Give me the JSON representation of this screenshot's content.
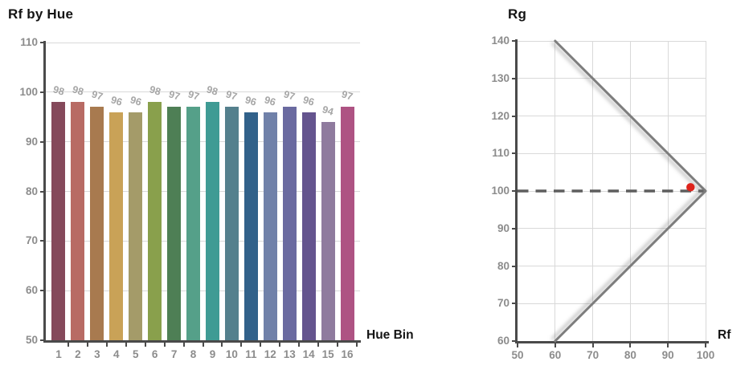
{
  "page": {
    "background": "#ffffff"
  },
  "colors": {
    "title_text": "#141414",
    "axis_line": "#4A4A4A",
    "tick_label": "#8C8C8C",
    "bar_value_label": "#A6A6A6",
    "gridline": "#D9D9D9",
    "boundary_line": "#7D7D7D",
    "dashed_line": "#5E5E5E",
    "point_red": "#DE231B"
  },
  "chart_data": [
    {
      "type": "bar",
      "title": "Rf by Hue",
      "xlabel": "Hue Bin",
      "ylabel": "",
      "ylim": [
        50,
        110
      ],
      "yticks": [
        50,
        60,
        70,
        80,
        90,
        100,
        110
      ],
      "grid": true,
      "categories": [
        "1",
        "2",
        "3",
        "4",
        "5",
        "6",
        "7",
        "8",
        "9",
        "10",
        "11",
        "12",
        "13",
        "14",
        "15",
        "16"
      ],
      "values": [
        98,
        98,
        97,
        96,
        96,
        98,
        97,
        97,
        98,
        97,
        96,
        96,
        97,
        96,
        94,
        97
      ],
      "bar_colors": [
        "#85495B",
        "#B86B64",
        "#A87A4F",
        "#C9A257",
        "#A49B69",
        "#89A04C",
        "#4E7F55",
        "#55A089",
        "#3F9B94",
        "#54808D",
        "#31618A",
        "#7081A9",
        "#6A6AA0",
        "#64548E",
        "#8F7B9E",
        "#AE5383"
      ]
    },
    {
      "type": "scatter",
      "title": "",
      "xlabel": "Rf",
      "ylabel": "Rg",
      "xlim": [
        50,
        100
      ],
      "ylim": [
        60,
        140
      ],
      "xticks": [
        50,
        60,
        70,
        80,
        90,
        100
      ],
      "yticks": [
        60,
        70,
        80,
        90,
        100,
        110,
        120,
        130,
        140
      ],
      "grid": true,
      "boundary_lines": [
        {
          "from": [
            60,
            140
          ],
          "to": [
            100,
            100
          ]
        },
        {
          "from": [
            60,
            60
          ],
          "to": [
            100,
            100
          ]
        }
      ],
      "dashed_reference_line": {
        "y": 100
      },
      "points": [
        {
          "x": 96,
          "y": 101
        }
      ]
    }
  ]
}
